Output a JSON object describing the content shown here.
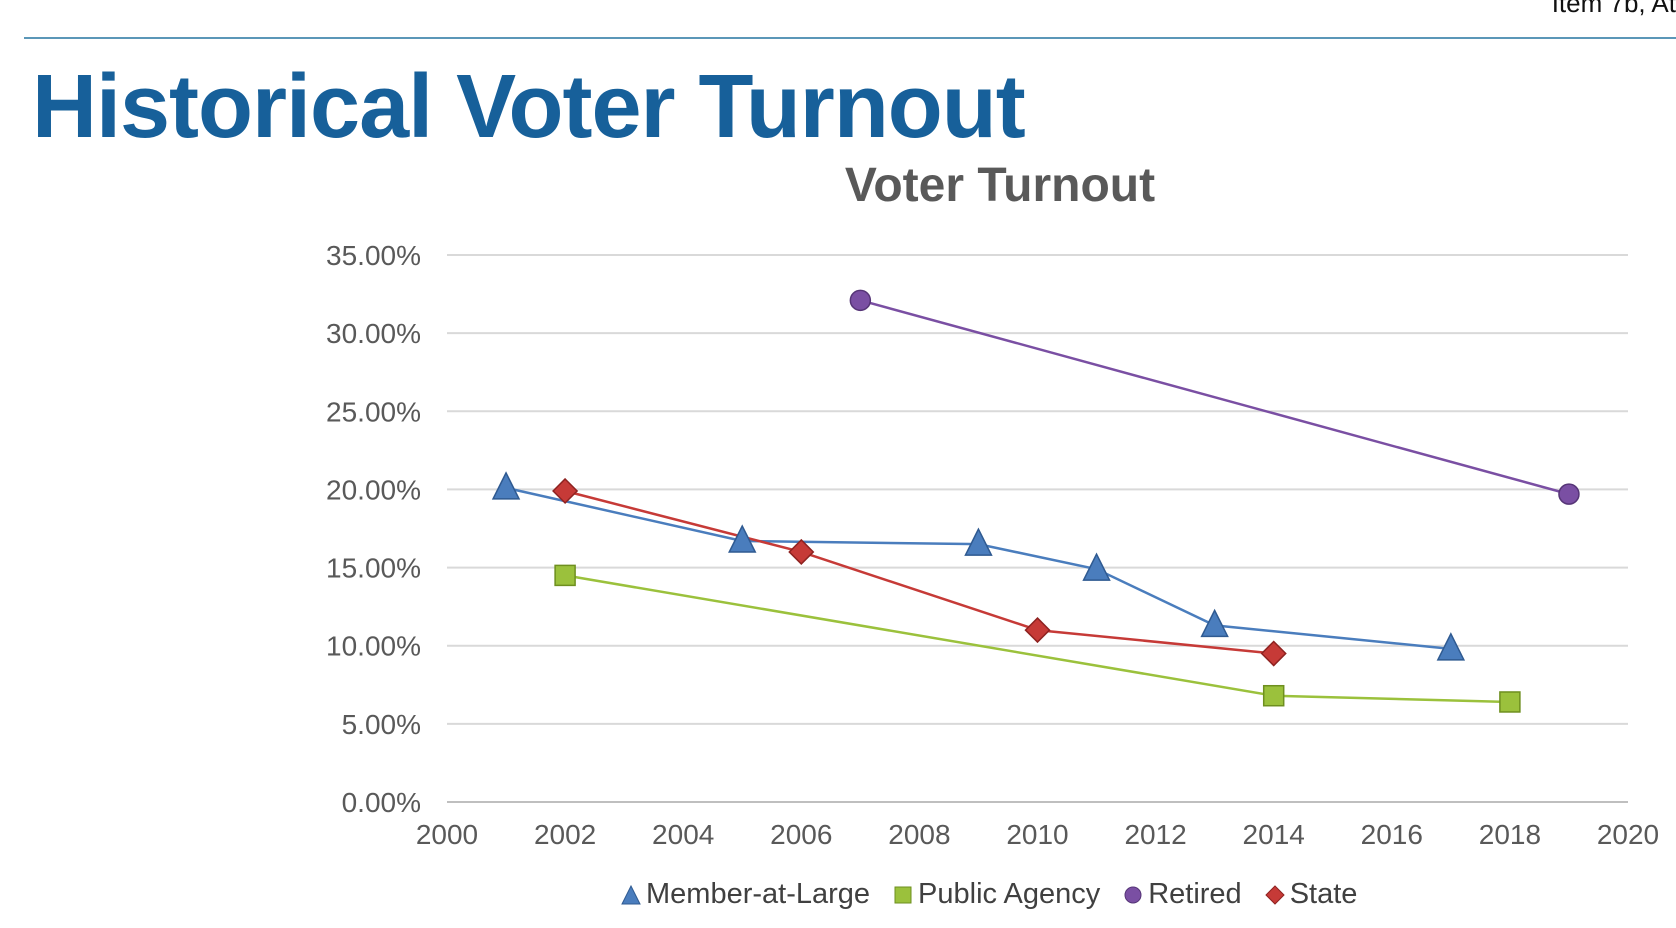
{
  "header": {
    "corner_label": "Item 7b, At",
    "page_title": "Historical Voter Turnout"
  },
  "colors": {
    "accent": "#17609a",
    "rule": "#5b97b8",
    "member_at_large": "#4a7dbd",
    "public_agency": "#9bc13c",
    "retired": "#7a4fa3",
    "state": "#c63a37"
  },
  "chart_data": {
    "type": "scatter",
    "title": "Voter Turnout",
    "xlabel": "",
    "ylabel": "",
    "xlim": [
      2000,
      2020
    ],
    "ylim": [
      0,
      0.35
    ],
    "x_ticks": [
      "2000",
      "2002",
      "2004",
      "2006",
      "2008",
      "2010",
      "2012",
      "2014",
      "2016",
      "2018",
      "2020"
    ],
    "y_ticks": [
      "0.00%",
      "5.00%",
      "10.00%",
      "15.00%",
      "20.00%",
      "25.00%",
      "30.00%",
      "35.00%"
    ],
    "grid": "horizontal",
    "legend_position": "bottom",
    "series": [
      {
        "name": "Member-at-Large",
        "marker": "triangle",
        "color": "#4a7dbd",
        "points": [
          [
            2001,
            0.201
          ],
          [
            2005,
            0.167
          ],
          [
            2009,
            0.165
          ],
          [
            2011,
            0.149
          ],
          [
            2013,
            0.113
          ],
          [
            2017,
            0.098
          ]
        ]
      },
      {
        "name": "Public Agency",
        "marker": "square",
        "color": "#9bc13c",
        "points": [
          [
            2002,
            0.145
          ],
          [
            2014,
            0.068
          ],
          [
            2018,
            0.064
          ]
        ]
      },
      {
        "name": "Retired",
        "marker": "circle",
        "color": "#7a4fa3",
        "points": [
          [
            2007,
            0.321
          ],
          [
            2019,
            0.197
          ]
        ]
      },
      {
        "name": "State",
        "marker": "diamond",
        "color": "#c63a37",
        "points": [
          [
            2002,
            0.199
          ],
          [
            2006,
            0.16
          ],
          [
            2010,
            0.11
          ],
          [
            2014,
            0.095
          ]
        ]
      }
    ]
  }
}
